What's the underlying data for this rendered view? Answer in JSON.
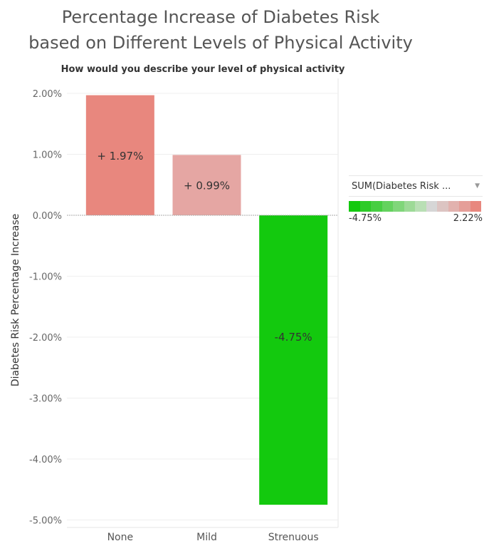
{
  "chart_data": {
    "type": "bar",
    "title": [
      "Percentage Increase of Diabetes Risk",
      "based on Different Levels of Physical Activity"
    ],
    "subtitle": "How would you describe your level of physical activity",
    "ylabel": "Diabetes Risk Percentage Increase",
    "categories": [
      "None",
      "Mild",
      "Strenuous"
    ],
    "values": [
      1.97,
      0.99,
      -4.75
    ],
    "data_labels": [
      "+ 1.97%",
      "+ 0.99%",
      "-4.75%"
    ],
    "bar_colors": [
      "#e8877e",
      "#e5a6a3",
      "#13c90e"
    ],
    "ylim": [
      -5.0,
      2.2
    ],
    "yticks": [
      2.0,
      1.0,
      0.0,
      -1.0,
      -2.0,
      -3.0,
      -4.0,
      -5.0
    ],
    "ytick_labels": [
      "2.00%",
      "1.00%",
      "0.00%",
      "-1.00%",
      "-2.00%",
      "-3.00%",
      "-4.00%",
      "-5.00%"
    ],
    "grid": true,
    "legend": {
      "title": "SUM(Diabetes Risk ...",
      "min_label": "-4.75%",
      "max_label": "2.22%",
      "ramp_colors": [
        "#13c90e",
        "#2dcb28",
        "#47ce42",
        "#64d25e",
        "#80d67a",
        "#9dda97",
        "#b9dfb5",
        "#d6d6d6",
        "#dcc4c2",
        "#e2b2ae",
        "#e59e98",
        "#e8877e"
      ],
      "placement": "right"
    }
  }
}
